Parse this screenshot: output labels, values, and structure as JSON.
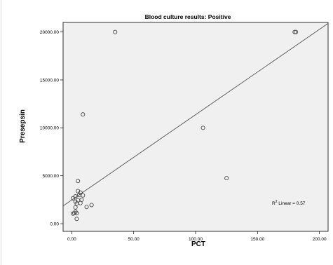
{
  "chart_data": {
    "type": "scatter",
    "title": "Blood culture results: Positive",
    "xlabel": "PCT",
    "ylabel": "Presepsin",
    "xlim": [
      -7,
      207
    ],
    "ylim": [
      -800,
      21000
    ],
    "x_ticks": [
      0,
      50,
      100,
      150,
      200
    ],
    "x_tick_labels": [
      "0.00",
      "50.00",
      "100.00",
      "150.00",
      "200.00"
    ],
    "y_ticks": [
      0,
      5000,
      10000,
      15000,
      20000
    ],
    "y_tick_labels": [
      "0.00",
      "5000.00",
      "10000.00",
      "15000.00",
      "20000.00"
    ],
    "grid": false,
    "plot_background": "#f0f0f0",
    "point_color": "#4a4a4a",
    "points": [
      {
        "x": 35,
        "y": 20000
      },
      {
        "x": 180,
        "y": 20000
      },
      {
        "x": 181,
        "y": 20000
      },
      {
        "x": 9,
        "y": 11400
      },
      {
        "x": 106,
        "y": 10000
      },
      {
        "x": 125,
        "y": 4750
      },
      {
        "x": 5,
        "y": 4450
      },
      {
        "x": 5,
        "y": 3400
      },
      {
        "x": 7,
        "y": 3250
      },
      {
        "x": 6,
        "y": 3000
      },
      {
        "x": 9,
        "y": 2950
      },
      {
        "x": 3,
        "y": 2850
      },
      {
        "x": 1,
        "y": 2650
      },
      {
        "x": 8,
        "y": 2500
      },
      {
        "x": 5,
        "y": 2450
      },
      {
        "x": 3,
        "y": 2300
      },
      {
        "x": 4,
        "y": 2100
      },
      {
        "x": 7,
        "y": 2150
      },
      {
        "x": 16,
        "y": 1950
      },
      {
        "x": 12,
        "y": 1750
      },
      {
        "x": 3,
        "y": 1700
      },
      {
        "x": 3,
        "y": 1250
      },
      {
        "x": 2,
        "y": 1100
      },
      {
        "x": 4,
        "y": 1100
      },
      {
        "x": 1,
        "y": 1050
      },
      {
        "x": 4,
        "y": 500
      }
    ],
    "fit_line": {
      "label_prefix": "R",
      "label_sup": "2",
      "label_suffix": " Linear = 0.57",
      "x": [
        -7,
        207
      ],
      "y": [
        1850,
        20900
      ]
    }
  }
}
